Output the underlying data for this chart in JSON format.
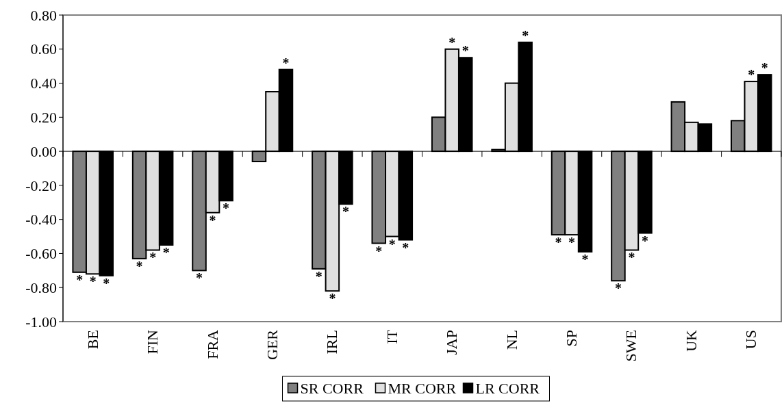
{
  "chart_data": {
    "type": "bar",
    "categories": [
      "BE",
      "FIN",
      "FRA",
      "GER",
      "IRL",
      "IT",
      "JAP",
      "NL",
      "SP",
      "SWE",
      "UK",
      "US"
    ],
    "series": [
      {
        "name": "SR CORR",
        "color": "#808080",
        "values": [
          -0.71,
          -0.63,
          -0.7,
          -0.06,
          -0.69,
          -0.54,
          0.2,
          0.01,
          -0.49,
          -0.76,
          0.29,
          0.18
        ],
        "value_labels": [
          "*",
          "*",
          "*",
          null,
          "*",
          "*",
          null,
          null,
          "*",
          "*",
          null,
          null
        ]
      },
      {
        "name": "MR CORR",
        "color": "#e0e0e0",
        "values": [
          -0.72,
          -0.58,
          -0.36,
          0.35,
          -0.82,
          -0.5,
          0.6,
          0.4,
          -0.49,
          -0.58,
          0.17,
          0.41
        ],
        "value_labels": [
          "*",
          "*",
          "*",
          null,
          "*",
          "*",
          "*",
          null,
          "*",
          "*",
          null,
          "*"
        ]
      },
      {
        "name": "LR CORR",
        "color": "#000000",
        "values": [
          -0.73,
          -0.55,
          -0.29,
          0.48,
          -0.31,
          -0.52,
          0.55,
          0.64,
          -0.59,
          -0.48,
          0.16,
          0.45
        ],
        "value_labels": [
          "*",
          "*",
          "*",
          "*",
          "*",
          "*",
          "*",
          "*",
          "*",
          "*",
          null,
          "*"
        ]
      }
    ],
    "ylim": [
      -1.0,
      0.8
    ],
    "yticks": [
      {
        "value": -1.0,
        "label": "-1.00"
      },
      {
        "value": -0.8,
        "label": "-0.80"
      },
      {
        "value": -0.6,
        "label": "-0.60"
      },
      {
        "value": -0.4,
        "label": "-0.40"
      },
      {
        "value": -0.2,
        "label": "-0.20"
      },
      {
        "value": 0,
        "label": "0.00"
      },
      {
        "value": 0.2,
        "label": "0.20"
      },
      {
        "value": 0.4,
        "label": "0.40"
      },
      {
        "value": 0.6,
        "label": "0.60"
      },
      {
        "value": 0.8,
        "label": "0.80"
      }
    ],
    "legend": "bottom"
  }
}
